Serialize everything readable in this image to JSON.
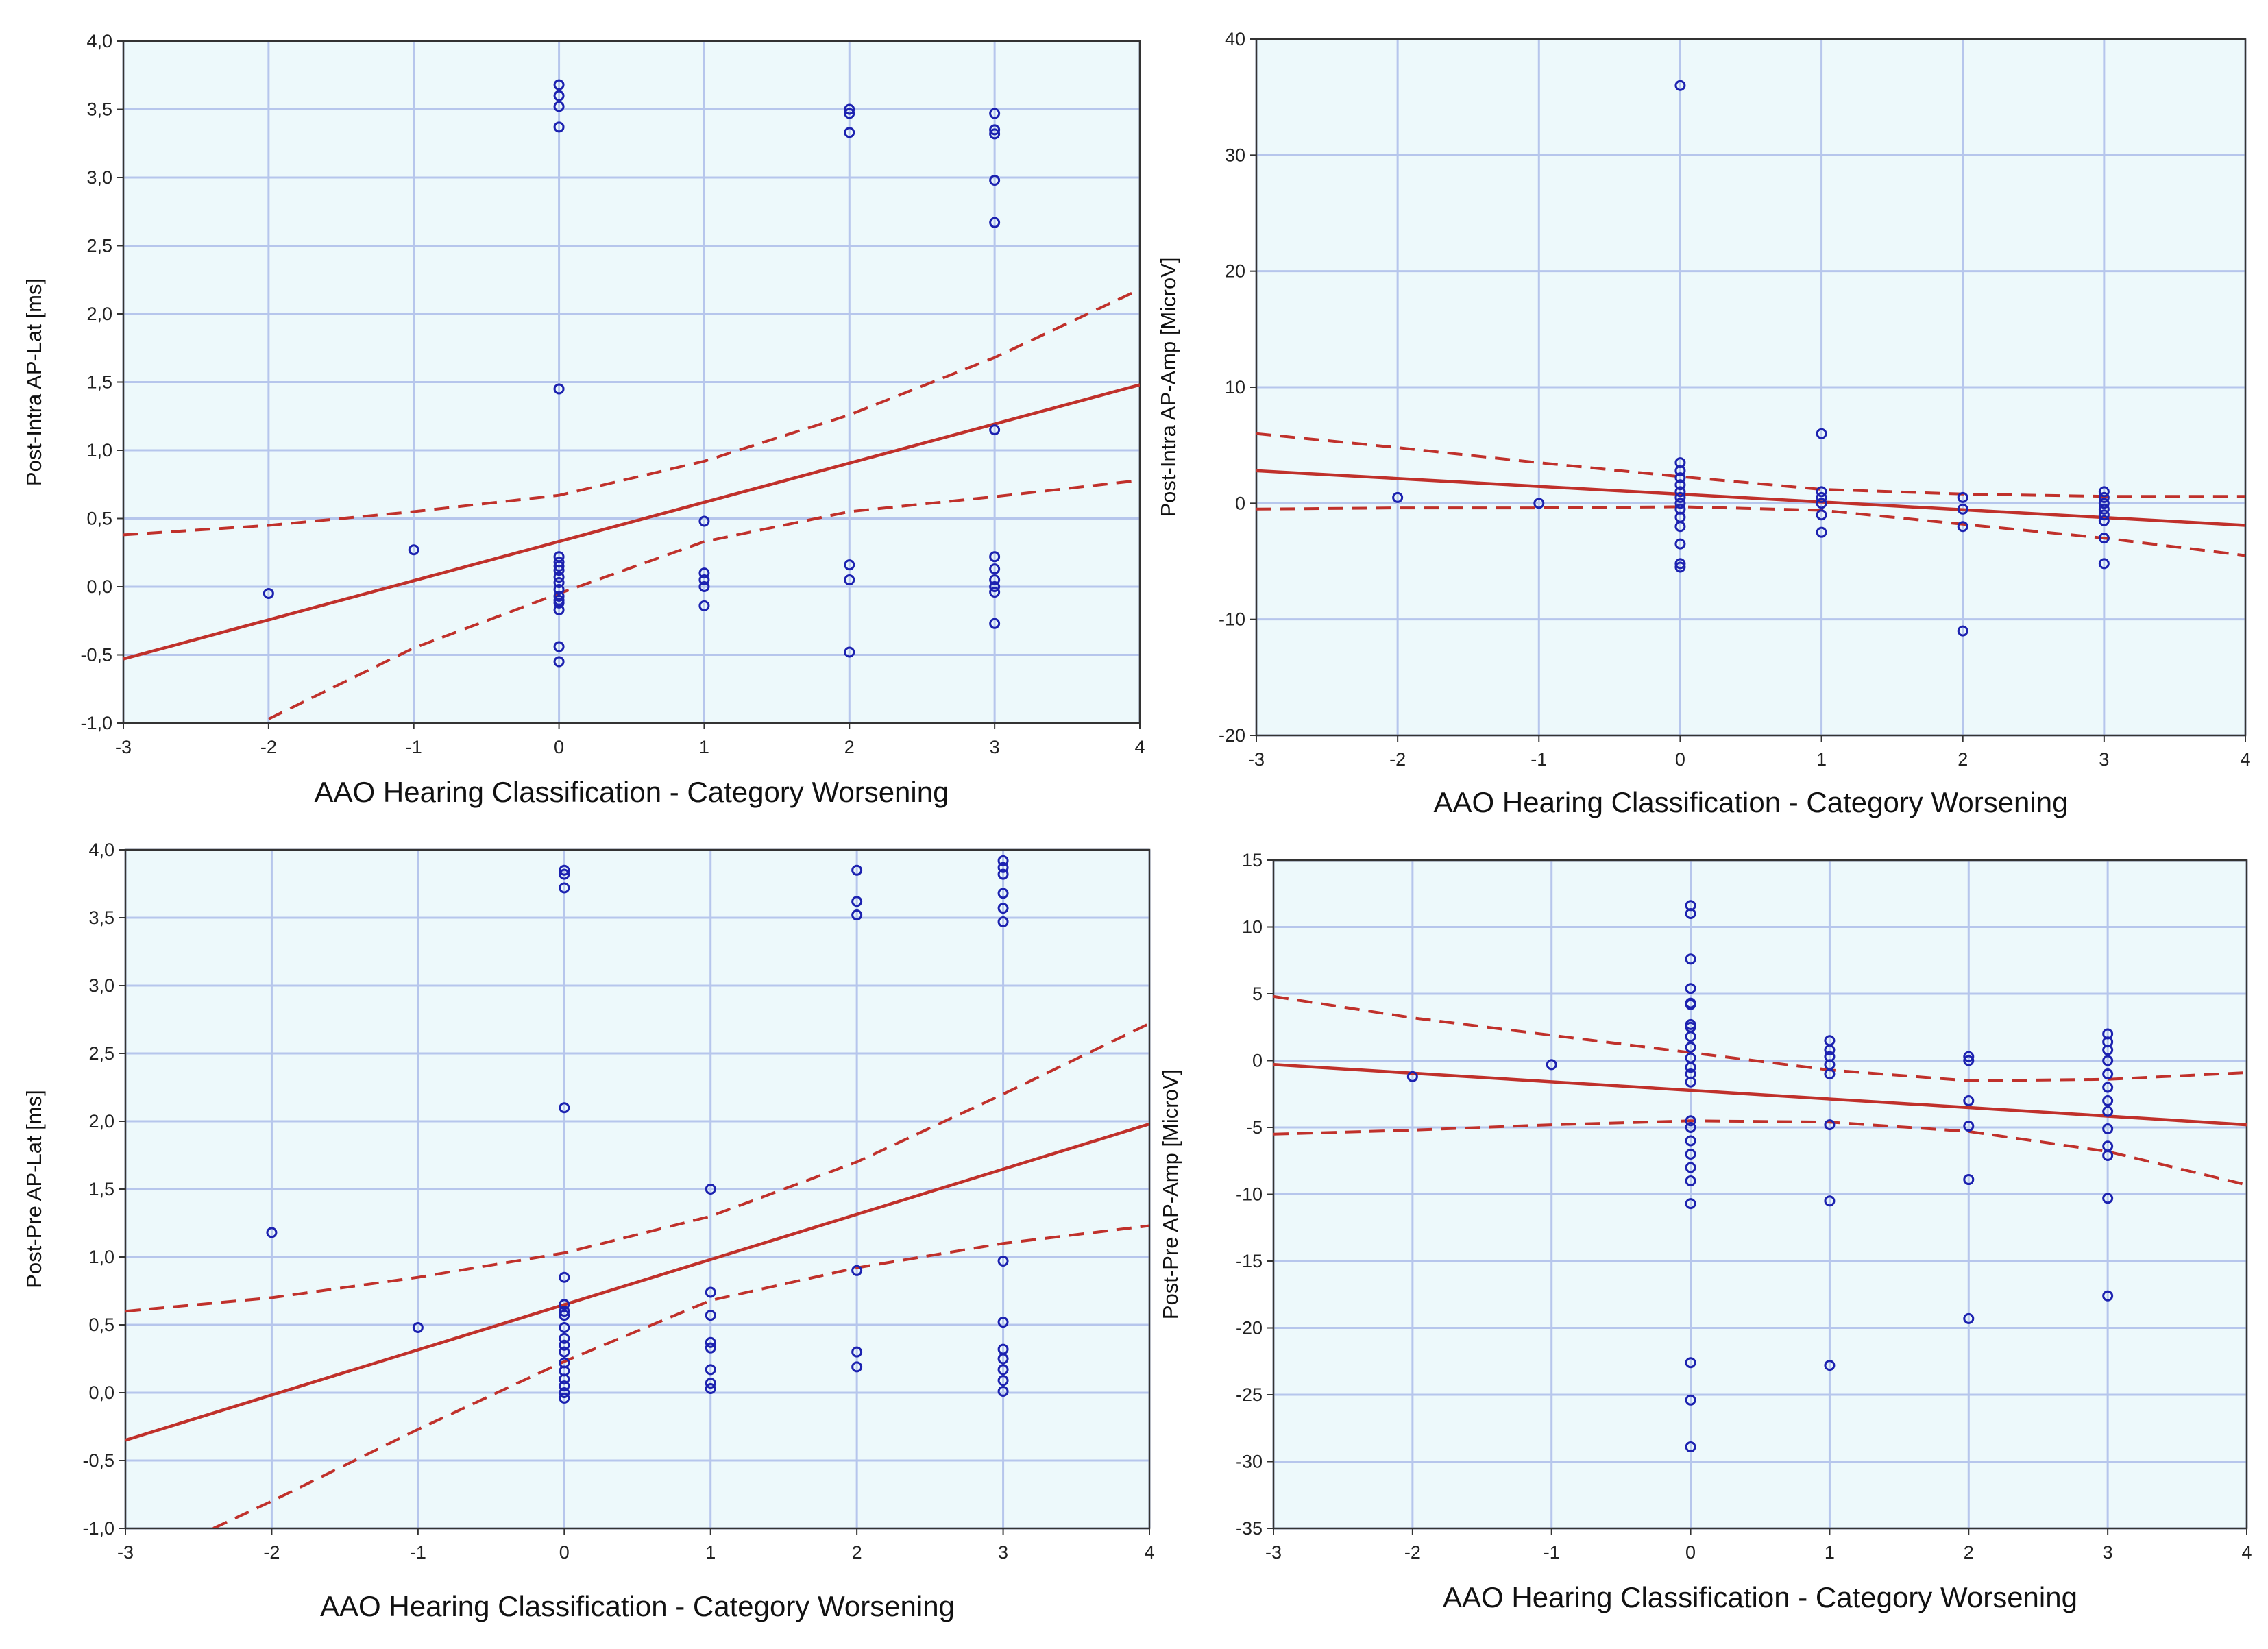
{
  "chart_data": [
    {
      "type": "scatter",
      "title": "",
      "xlabel": "AAO Hearing Classification - Category Worsening",
      "ylabel": "Post-Intra AP-Lat [ms]",
      "xlim": [
        -3,
        4
      ],
      "ylim": [
        -1.0,
        4.0
      ],
      "xticks": [
        -3,
        -2,
        -1,
        0,
        1,
        2,
        3,
        4
      ],
      "xtick_labels": [
        "-3",
        "-2",
        "-1",
        "0",
        "1",
        "2",
        "3",
        "4"
      ],
      "yticks": [
        -1.0,
        -0.5,
        0.0,
        0.5,
        1.0,
        1.5,
        2.0,
        2.5,
        3.0,
        3.5,
        4.0
      ],
      "ytick_labels": [
        "-1,0",
        "-0,5",
        "0,0",
        "0,5",
        "1,0",
        "1,5",
        "2,0",
        "2,5",
        "3,0",
        "3,5",
        "4,0"
      ],
      "grid": true,
      "points": {
        "x": [
          -2,
          -1,
          0,
          0,
          0,
          0,
          0,
          0,
          0,
          0,
          0,
          0,
          0,
          0,
          0,
          0,
          0,
          0,
          0,
          0,
          1,
          1,
          1,
          1,
          1,
          2,
          2,
          2,
          2,
          2,
          2,
          3,
          3,
          3,
          3,
          3,
          3,
          3,
          3,
          3,
          3,
          3,
          3
        ],
        "y": [
          -0.05,
          0.27,
          3.68,
          3.6,
          3.52,
          3.37,
          1.45,
          0.22,
          0.18,
          0.12,
          0.07,
          0.03,
          -0.02,
          -0.07,
          -0.12,
          -0.17,
          -0.44,
          -0.55,
          0.15,
          -0.1,
          0.48,
          0.1,
          0.05,
          0.0,
          -0.14,
          3.5,
          3.47,
          3.33,
          0.16,
          0.05,
          -0.48,
          3.47,
          3.35,
          3.32,
          2.98,
          2.67,
          1.15,
          0.22,
          0.13,
          0.05,
          0.0,
          -0.04,
          -0.27
        ]
      },
      "fit_line": {
        "x": [
          -3,
          4
        ],
        "y": [
          -0.53,
          1.48
        ]
      },
      "ci_upper": {
        "x": [
          -3,
          -2,
          -1,
          0,
          1,
          2,
          3,
          4
        ],
        "y": [
          0.38,
          0.45,
          0.55,
          0.67,
          0.92,
          1.26,
          1.68,
          2.18
        ]
      },
      "ci_lower": {
        "x": [
          -2,
          -1,
          0,
          1,
          2,
          3,
          4
        ],
        "y": [
          -0.97,
          -0.45,
          -0.05,
          0.33,
          0.55,
          0.66,
          0.78
        ]
      },
      "colors": {
        "point": "#1c22b0",
        "fit": "#c0312b",
        "background": "#edf9fb",
        "grid": "#b6c6ec"
      }
    },
    {
      "type": "scatter",
      "title": "",
      "xlabel": "AAO Hearing Classification - Category Worsening",
      "ylabel": "Post-Intra AP-Amp [MicroV]",
      "xlim": [
        -3,
        4
      ],
      "ylim": [
        -20,
        40
      ],
      "xticks": [
        -3,
        -2,
        -1,
        0,
        1,
        2,
        3,
        4
      ],
      "xtick_labels": [
        "-3",
        "-2",
        "-1",
        "0",
        "1",
        "2",
        "3",
        "4"
      ],
      "yticks": [
        -20,
        -10,
        0,
        10,
        20,
        30,
        40
      ],
      "ytick_labels": [
        "-20",
        "-10",
        "0",
        "10",
        "20",
        "30",
        "40"
      ],
      "grid": true,
      "points": {
        "x": [
          -2,
          -1,
          0,
          0,
          0,
          0,
          0,
          0,
          0,
          0,
          0,
          0,
          0,
          0,
          0,
          0,
          1,
          1,
          1,
          1,
          1,
          1,
          2,
          2,
          2,
          2,
          3,
          3,
          3,
          3,
          3,
          3,
          3,
          3
        ],
        "y": [
          0.5,
          0.0,
          36.0,
          3.5,
          2.8,
          2.2,
          1.6,
          1.0,
          0.5,
          0.0,
          -0.5,
          -1.2,
          -2.0,
          -3.5,
          -5.2,
          -5.5,
          6.0,
          1.0,
          0.5,
          0.0,
          -1.0,
          -2.5,
          0.5,
          -0.5,
          -2.0,
          -11.0,
          1.0,
          0.5,
          0.0,
          -0.5,
          -1.0,
          -1.5,
          -3.0,
          -5.2
        ],
        "size": 34
      },
      "fit_line": {
        "x": [
          -3,
          4
        ],
        "y": [
          2.8,
          -1.9
        ]
      },
      "ci_upper": {
        "x": [
          -3,
          -2,
          -1,
          0,
          1,
          2,
          3,
          4
        ],
        "y": [
          6.0,
          4.8,
          3.5,
          2.3,
          1.2,
          0.8,
          0.6,
          0.6
        ]
      },
      "ci_lower": {
        "x": [
          -3,
          -2,
          -1,
          0,
          1,
          2,
          3,
          4
        ],
        "y": [
          -0.5,
          -0.4,
          -0.4,
          -0.3,
          -0.6,
          -1.8,
          -3.0,
          -4.5
        ]
      },
      "colors": {
        "point": "#1c22b0",
        "fit": "#c0312b",
        "background": "#edf9fb",
        "grid": "#b6c6ec"
      }
    },
    {
      "type": "scatter",
      "title": "",
      "xlabel": "AAO Hearing Classification - Category Worsening",
      "ylabel": "Post-Pre AP-Lat [ms]",
      "xlim": [
        -3,
        4
      ],
      "ylim": [
        -1.0,
        4.0
      ],
      "xticks": [
        -3,
        -2,
        -1,
        0,
        1,
        2,
        3,
        4
      ],
      "xtick_labels": [
        "-3",
        "-2",
        "-1",
        "0",
        "1",
        "2",
        "3",
        "4"
      ],
      "yticks": [
        -1.0,
        -0.5,
        0.0,
        0.5,
        1.0,
        1.5,
        2.0,
        2.5,
        3.0,
        3.5,
        4.0
      ],
      "ytick_labels": [
        "-1,0",
        "-0,5",
        "0,0",
        "0,5",
        "1,0",
        "1,5",
        "2,0",
        "2,5",
        "3,0",
        "3,5",
        "4,0"
      ],
      "grid": true,
      "points": {
        "x": [
          -2,
          -1,
          0,
          0,
          0,
          0,
          0,
          0,
          0,
          0,
          0,
          0,
          0,
          0,
          0,
          0,
          0,
          0,
          0,
          0,
          1,
          1,
          1,
          1,
          1,
          1,
          1,
          1,
          2,
          2,
          2,
          2,
          2,
          2,
          3,
          3,
          3,
          3,
          3,
          3,
          3,
          3,
          3,
          3,
          3,
          3,
          3
        ],
        "y": [
          1.18,
          0.48,
          3.85,
          3.82,
          3.72,
          2.1,
          0.85,
          0.65,
          0.57,
          0.48,
          0.4,
          0.3,
          0.22,
          0.16,
          0.1,
          0.05,
          0.0,
          -0.04,
          0.6,
          0.35,
          1.5,
          0.74,
          0.57,
          0.37,
          0.33,
          0.17,
          0.07,
          0.03,
          3.85,
          3.62,
          3.52,
          0.9,
          0.3,
          0.19,
          3.92,
          3.87,
          3.82,
          3.68,
          3.57,
          3.47,
          0.97,
          0.52,
          0.32,
          0.25,
          0.17,
          0.09,
          0.01
        ],
        "size": 29
      },
      "fit_line": {
        "x": [
          -3,
          4
        ],
        "y": [
          -0.35,
          1.98
        ]
      },
      "ci_upper": {
        "x": [
          -3,
          -2,
          -1,
          0,
          1,
          2,
          3,
          4
        ],
        "y": [
          0.6,
          0.7,
          0.85,
          1.03,
          1.3,
          1.7,
          2.2,
          2.72
        ]
      },
      "ci_lower": {
        "x": [
          -2.4,
          -2,
          -1,
          0,
          1,
          2,
          3,
          4
        ],
        "y": [
          -1.0,
          -0.8,
          -0.27,
          0.23,
          0.68,
          0.92,
          1.1,
          1.23
        ]
      },
      "colors": {
        "point": "#1c22b0",
        "fit": "#c0312b",
        "background": "#edf9fb",
        "grid": "#b6c6ec"
      }
    },
    {
      "type": "scatter",
      "title": "",
      "xlabel": "AAO Hearing Classification - Category Worsening",
      "ylabel": "Post-Pre AP-Amp [MicroV]",
      "xlim": [
        -3,
        4
      ],
      "ylim": [
        -35,
        15
      ],
      "xticks": [
        -3,
        -2,
        -1,
        0,
        1,
        2,
        3,
        4
      ],
      "xtick_labels": [
        "-3",
        "-2",
        "-1",
        "0",
        "1",
        "2",
        "3",
        "4"
      ],
      "yticks": [
        -35,
        -30,
        -25,
        -20,
        -15,
        -10,
        -5,
        0,
        5,
        10,
        15
      ],
      "ytick_labels": [
        "-35",
        "-30",
        "-25",
        "-20",
        "-15",
        "-10",
        "-5",
        "0",
        "5",
        "10",
        "15"
      ],
      "grid": true,
      "points": {
        "x": [
          -2,
          -1,
          0,
          0,
          0,
          0,
          0,
          0,
          0,
          0,
          0,
          0,
          0,
          0,
          0,
          0,
          0,
          0,
          0,
          0,
          0,
          0,
          0,
          0,
          0,
          0,
          1,
          1,
          1,
          1,
          1,
          1,
          1,
          1,
          2,
          2,
          2,
          2,
          2,
          2,
          3,
          3,
          3,
          3,
          3,
          3,
          3,
          3,
          3,
          3,
          3,
          3,
          3
        ],
        "y": [
          -1.2,
          -0.3,
          11.6,
          11.0,
          7.6,
          5.4,
          4.3,
          4.2,
          2.7,
          1.8,
          1.0,
          0.2,
          -0.5,
          -1.0,
          -1.6,
          -4.5,
          -5.0,
          -6.0,
          -7.0,
          -8.0,
          -9.0,
          -10.7,
          -22.6,
          -25.4,
          -28.9,
          2.5,
          1.5,
          0.8,
          0.3,
          -0.3,
          -1.0,
          -4.8,
          -10.5,
          -22.8,
          0.3,
          0.0,
          -3.0,
          -4.9,
          -8.9,
          -19.3,
          2.0,
          1.4,
          0.8,
          0.0,
          -1.0,
          -2.0,
          -3.0,
          -3.8,
          -5.1,
          -6.4,
          -7.1,
          -10.3,
          -17.6
        ]
      },
      "fit_line": {
        "x": [
          -3,
          4
        ],
        "y": [
          -0.3,
          -4.8
        ]
      },
      "ci_upper": {
        "x": [
          -3,
          -2,
          -1,
          0,
          1,
          2,
          3,
          4
        ],
        "y": [
          4.8,
          3.2,
          1.9,
          0.6,
          -0.7,
          -1.5,
          -1.4,
          -0.9
        ]
      },
      "ci_lower": {
        "x": [
          -3,
          -2,
          -1,
          0,
          1,
          2,
          3,
          4
        ],
        "y": [
          -5.5,
          -5.2,
          -4.8,
          -4.5,
          -4.6,
          -5.3,
          -6.8,
          -9.3
        ]
      },
      "colors": {
        "point": "#1c22b0",
        "fit": "#c0312b",
        "background": "#edf9fb",
        "grid": "#b6c6ec"
      }
    }
  ]
}
